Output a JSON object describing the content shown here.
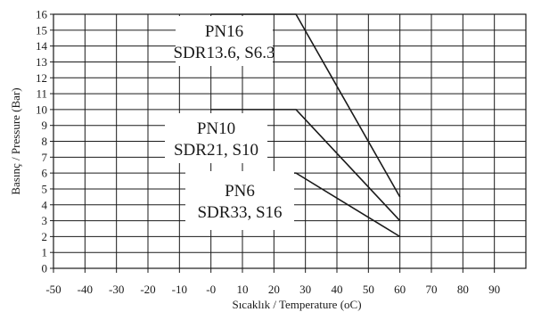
{
  "chart_data": {
    "type": "line",
    "xlabel": "Sıcaklık / Temperature (oC)",
    "ylabel": "Basınç / Pressure (Bar)",
    "xlim": [
      -50,
      100
    ],
    "ylim": [
      0,
      16
    ],
    "x_ticks": [
      -50,
      -40,
      -30,
      -20,
      -10,
      0,
      10,
      20,
      30,
      40,
      50,
      60,
      70,
      80,
      90
    ],
    "x_tick_labels": [
      "-50",
      "-40",
      "-30",
      "-20",
      "-10",
      "-0",
      "10",
      "20",
      "30",
      "40",
      "50",
      "60",
      "70",
      "80",
      "90"
    ],
    "y_ticks": [
      0,
      1,
      2,
      3,
      4,
      5,
      6,
      7,
      8,
      9,
      10,
      11,
      12,
      13,
      14,
      15,
      16
    ],
    "grid": true,
    "legend": "none",
    "series": [
      {
        "label_lines": [
          "PN16",
          "SDR13.6, S6.3"
        ],
        "x": [
          0,
          27,
          60
        ],
        "y": [
          16,
          16,
          4.5
        ]
      },
      {
        "label_lines": [
          "PN10",
          "SDR21, S10"
        ],
        "x": [
          0,
          27,
          60
        ],
        "y": [
          10,
          10,
          3
        ]
      },
      {
        "label_lines": [
          "PN6",
          "SDR33, S16"
        ],
        "x": [
          0,
          27,
          60
        ],
        "y": [
          6,
          6,
          2
        ]
      }
    ]
  }
}
